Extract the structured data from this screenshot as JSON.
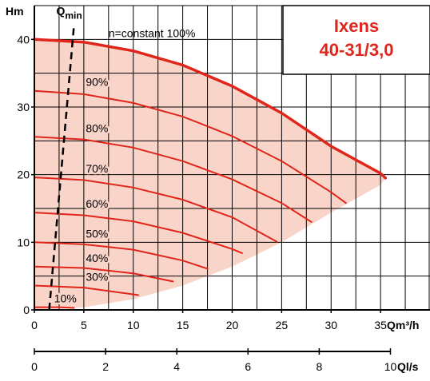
{
  "chart_data": {
    "type": "line",
    "title": "Ixens\n40-31/3,0",
    "title_lines": [
      "Ixens",
      "40-31/3,0"
    ],
    "ylabel": "Hm",
    "xlabel": "Qm³/h",
    "xlabel_secondary": "Ql/s",
    "x_range": [
      0,
      40
    ],
    "y_range": [
      0,
      45
    ],
    "x_ticks": [
      0,
      5,
      10,
      15,
      20,
      25,
      30,
      35
    ],
    "y_ticks": [
      0,
      10,
      20,
      30,
      40
    ],
    "x_ticks_secondary": [
      0,
      2,
      4,
      6,
      8,
      10
    ],
    "grid": true,
    "colors": {
      "curve": "#e0251b",
      "fill": "#f9d4c9",
      "title": "#e0251b",
      "axis": "#000000",
      "grid": "#000000"
    },
    "qmin_label_main": "Q",
    "qmin_label_sub": "min",
    "qmin_line": {
      "x": [
        1.5,
        4.0
      ],
      "y": [
        0,
        42
      ]
    },
    "operating_area_boundary": {
      "x": [
        0,
        5,
        10,
        15,
        20,
        25,
        30,
        35,
        35.5
      ],
      "y": [
        0,
        0.4,
        1.6,
        3.6,
        6.4,
        10,
        14.4,
        18.5,
        19.5
      ]
    },
    "series": [
      {
        "name": "n=constant 100%",
        "label": "n=constant 100%",
        "max": true,
        "x": [
          0,
          5,
          10,
          15,
          20,
          25,
          30,
          35,
          35.5
        ],
        "y": [
          40,
          39.6,
          38.3,
          36.2,
          33.1,
          29.1,
          24.2,
          20.2,
          19.5
        ]
      },
      {
        "name": "90%",
        "label": "90%",
        "x": [
          0,
          5,
          10,
          15,
          20,
          25,
          30,
          31.5
        ],
        "y": [
          32.4,
          31.9,
          30.6,
          28.6,
          25.7,
          22,
          17.4,
          15.8
        ]
      },
      {
        "name": "80%",
        "label": "80%",
        "x": [
          0,
          5,
          10,
          15,
          20,
          25,
          28
        ],
        "y": [
          25.6,
          25.2,
          24,
          22,
          19.3,
          15.8,
          13
        ]
      },
      {
        "name": "70%",
        "label": "70%",
        "x": [
          0,
          5,
          10,
          15,
          20,
          24.5
        ],
        "y": [
          19.6,
          19.2,
          18.1,
          16.3,
          13.7,
          10.1
        ]
      },
      {
        "name": "60%",
        "label": "60%",
        "x": [
          0,
          5,
          10,
          15,
          20,
          21
        ],
        "y": [
          14.4,
          14,
          13.1,
          11.4,
          9,
          8.4
        ]
      },
      {
        "name": "50%",
        "label": "50%",
        "x": [
          0,
          5,
          10,
          15,
          17.5
        ],
        "y": [
          10,
          9.7,
          8.9,
          7.3,
          6.1
        ]
      },
      {
        "name": "40%",
        "label": "40%",
        "x": [
          0,
          5,
          10,
          14
        ],
        "y": [
          6.4,
          6.2,
          5.4,
          4.2
        ]
      },
      {
        "name": "30%",
        "label": "30%",
        "x": [
          0,
          5,
          10.5
        ],
        "y": [
          3.6,
          3.3,
          2.2
        ]
      },
      {
        "name": "10%",
        "label": "10%",
        "x": [
          0,
          2.5,
          4
        ],
        "y": [
          0.4,
          0.4,
          0.3
        ]
      }
    ]
  }
}
